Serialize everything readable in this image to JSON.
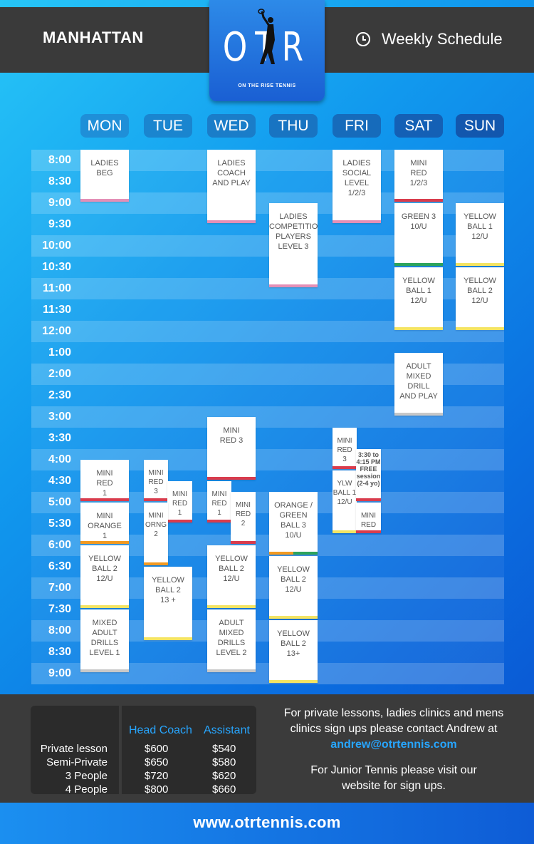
{
  "header": {
    "city": "MANHATTAN",
    "schedule_label": "Weekly Schedule",
    "clock_icon": "clock-icon"
  },
  "logo": {
    "letters": "OTR",
    "tagline": "ON THE RISE TENNIS"
  },
  "days": [
    "MON",
    "TUE",
    "WED",
    "THU",
    "FRI",
    "SAT",
    "SUN"
  ],
  "times": [
    "8:00",
    "8:30",
    "9:00",
    "9:30",
    "10:00",
    "10:30",
    "11:00",
    "11:30",
    "12:00",
    "1:00",
    "2:00",
    "2:30",
    "3:00",
    "3:30",
    "4:00",
    "4:30",
    "5:00",
    "5:30",
    "6:00",
    "6:30",
    "7:00",
    "7:30",
    "8:00",
    "8:30",
    "9:00"
  ],
  "colors": {
    "pink": "#e48fb6",
    "red": "#d93c4d",
    "green": "#2da45c",
    "yellow": "#f4e463",
    "orange": "#f29a22",
    "grey": "#c8c8c8",
    "accent_blue": "#27a6ff"
  },
  "classes": [
    {
      "day": 0,
      "start": 0,
      "end": 2.5,
      "label": "LADIES\nBEG",
      "color": "pink"
    },
    {
      "day": 2,
      "start": 0,
      "end": 3.5,
      "label": "LADIES\nCOACH\nAND PLAY",
      "color": "pink"
    },
    {
      "day": 3,
      "start": 2.5,
      "end": 6.5,
      "label": "LADIES\nCOMPETITION\nPLAYERS\nLEVEL 3",
      "color": "pink"
    },
    {
      "day": 4,
      "start": 0,
      "end": 3.5,
      "label": "LADIES\nSOCIAL\nLEVEL\n1/2/3",
      "color": "pink"
    },
    {
      "day": 5,
      "start": 0,
      "end": 2.5,
      "label": "MINI\nRED\n1/2/3",
      "color": "red"
    },
    {
      "day": 5,
      "start": 2.5,
      "end": 5.5,
      "label": "GREEN 3\n10/U",
      "color": "green"
    },
    {
      "day": 5,
      "start": 5.5,
      "end": 8.5,
      "label": "YELLOW\nBALL 1\n12/U",
      "color": "yellow"
    },
    {
      "day": 5,
      "start": 9.5,
      "end": 12.5,
      "label": "ADULT\nMIXED\nDRILL\nAND PLAY",
      "color": "grey"
    },
    {
      "day": 6,
      "start": 2.5,
      "end": 5.5,
      "label": "YELLOW\nBALL 1\n12/U",
      "color": "yellow"
    },
    {
      "day": 6,
      "start": 5.5,
      "end": 8.5,
      "label": "YELLOW\nBALL 2\n12/U",
      "color": "yellow"
    },
    {
      "day": 0,
      "start": 14.5,
      "end": 16.5,
      "label": "MINI\nRED\n1",
      "color": "red"
    },
    {
      "day": 0,
      "start": 16.5,
      "end": 18.5,
      "label": "MINI\nORANGE\n1",
      "color": "orange"
    },
    {
      "day": 0,
      "start": 18.5,
      "end": 21.5,
      "label": "YELLOW\nBALL 2\n12/U",
      "color": "yellow"
    },
    {
      "day": 0,
      "start": 21.5,
      "end": 24.5,
      "label": "MIXED\nADULT\nDRILLS\nLEVEL 1",
      "color": "grey"
    },
    {
      "day": 1,
      "start": 14.5,
      "end": 16.5,
      "label": "MINI\nRED\n3",
      "color": "red",
      "half": "left"
    },
    {
      "day": 1,
      "start": 15.5,
      "end": 17.5,
      "label": "MINI\nRED\n1",
      "color": "red",
      "half": "right"
    },
    {
      "day": 1,
      "start": 16.5,
      "end": 19.5,
      "label": "MINI\nORNG\n2",
      "color": "orange",
      "half": "left"
    },
    {
      "day": 1,
      "start": 19.5,
      "end": 23.0,
      "label": "YELLOW\nBALL 2\n13 +",
      "color": "yellow"
    },
    {
      "day": 2,
      "start": 12.5,
      "end": 15.5,
      "label": "MINI\nRED 3",
      "color": "red"
    },
    {
      "day": 2,
      "start": 15.5,
      "end": 17.5,
      "label": "MINI\nRED\n1",
      "color": "red",
      "half": "left"
    },
    {
      "day": 2,
      "start": 16.0,
      "end": 18.5,
      "label": "MINI\nRED\n2",
      "color": "red",
      "half": "right"
    },
    {
      "day": 2,
      "start": 18.5,
      "end": 21.5,
      "label": "YELLOW\nBALL 2\n12/U",
      "color": "yellow"
    },
    {
      "day": 2,
      "start": 21.5,
      "end": 24.5,
      "label": "ADULT\nMIXED\nDRILLS\nLEVEL 2",
      "color": "grey"
    },
    {
      "day": 3,
      "start": 16.0,
      "end": 19.0,
      "label": "ORANGE /\nGREEN\nBALL 3\n10/U",
      "color": "orange-green"
    },
    {
      "day": 3,
      "start": 19.0,
      "end": 22.0,
      "label": "YELLOW\nBALL 2\n12/U",
      "color": "yellow"
    },
    {
      "day": 3,
      "start": 22.0,
      "end": 25.0,
      "label": "YELLOW\nBALL 2\n13+",
      "color": "yellow"
    },
    {
      "day": 4,
      "start": 13.0,
      "end": 15.0,
      "label": "MINI\nRED\n3",
      "color": "red",
      "half": "left"
    },
    {
      "day": 4,
      "start": 15.0,
      "end": 18.0,
      "label": "YLW\nBALL 1\n12/U",
      "color": "yellow",
      "half": "left"
    },
    {
      "day": 4,
      "start": 14.0,
      "end": 16.5,
      "label": "3:30 to\n4:15 PM\nFREE\nsession\n(2-4 yo)",
      "color": "red",
      "half": "right",
      "small": true
    },
    {
      "day": 4,
      "start": 16.5,
      "end": 18.0,
      "label": "MINI\nRED\n2",
      "color": "red",
      "half": "right"
    }
  ],
  "pricing": {
    "head_coach_label": "Head Coach",
    "assistant_label": "Assistant",
    "rows": [
      {
        "label": "Private lesson",
        "head": "$600",
        "assistant": "$540"
      },
      {
        "label": "Semi-Private",
        "head": "$650",
        "assistant": "$580"
      },
      {
        "label": "3 People",
        "head": "$720",
        "assistant": "$620"
      },
      {
        "label": "4 People",
        "head": "$800",
        "assistant": "$660"
      }
    ]
  },
  "contact": {
    "line1": "For private lessons, ladies clinics and mens",
    "line2": "clinics sign ups please contact Andrew at",
    "email": "andrew@otrtennis.com",
    "junior1": "For Junior Tennis please visit our",
    "junior2": "website for sign ups."
  },
  "website": "www.otrtennis.com"
}
